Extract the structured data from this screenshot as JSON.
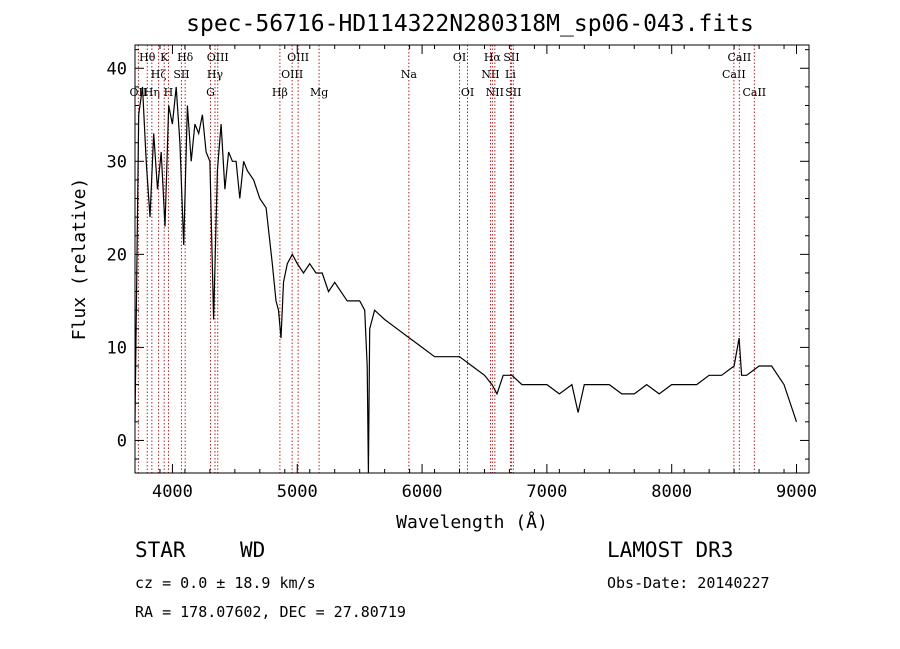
{
  "chart_data": {
    "type": "line",
    "title": "spec-56716-HD114322N280318M_sp06-043.fits",
    "xlabel": "Wavelength (Å)",
    "ylabel": "Flux (relative)",
    "xlim": [
      3700,
      9100
    ],
    "ylim": [
      -3.5,
      42.5
    ],
    "xticks": [
      4000,
      5000,
      6000,
      7000,
      8000,
      9000
    ],
    "yticks": [
      0,
      10,
      20,
      30,
      40
    ],
    "series": [
      {
        "name": "flux",
        "x": [
          3700,
          3730,
          3760,
          3790,
          3820,
          3850,
          3880,
          3910,
          3940,
          3970,
          4000,
          4030,
          4060,
          4090,
          4120,
          4150,
          4180,
          4210,
          4240,
          4270,
          4300,
          4330,
          4360,
          4390,
          4420,
          4450,
          4480,
          4510,
          4540,
          4570,
          4600,
          4650,
          4700,
          4750,
          4800,
          4830,
          4850,
          4870,
          4890,
          4920,
          4960,
          5000,
          5050,
          5100,
          5150,
          5200,
          5250,
          5300,
          5350,
          5400,
          5450,
          5500,
          5540,
          5560,
          5570,
          5580,
          5620,
          5700,
          5800,
          5900,
          6000,
          6100,
          6200,
          6300,
          6400,
          6500,
          6560,
          6600,
          6650,
          6720,
          6800,
          6900,
          7000,
          7100,
          7200,
          7250,
          7300,
          7400,
          7500,
          7600,
          7700,
          7800,
          7900,
          8000,
          8100,
          8200,
          8300,
          8400,
          8500,
          8540,
          8560,
          8600,
          8700,
          8800,
          8900,
          9000
        ],
        "y": [
          2,
          35,
          38,
          30,
          24,
          33,
          27,
          31,
          23,
          36,
          34,
          38,
          32,
          21,
          36,
          30,
          34,
          33,
          35,
          31,
          30,
          13,
          29,
          34,
          27,
          31,
          30,
          30,
          26,
          30,
          29,
          28,
          26,
          25,
          19,
          15,
          14,
          11,
          17,
          19,
          20,
          19,
          18,
          19,
          18,
          18,
          16,
          17,
          16,
          15,
          15,
          15,
          14,
          8,
          -3.5,
          12,
          14,
          13,
          12,
          11,
          10,
          9,
          9,
          9,
          8,
          7,
          6,
          5,
          7,
          7,
          6,
          6,
          6,
          5,
          6,
          3,
          6,
          6,
          6,
          5,
          5,
          6,
          5,
          6,
          6,
          6,
          7,
          7,
          8,
          11,
          7,
          7,
          8,
          8,
          6,
          2
        ]
      }
    ],
    "line_markers": [
      {
        "label": "OII",
        "wavelength": 3727,
        "row": 3
      },
      {
        "label": "Hθ",
        "wavelength": 3798,
        "row": 1
      },
      {
        "label": "Hη",
        "wavelength": 3835,
        "row": 3
      },
      {
        "label": "Hζ",
        "wavelength": 3889,
        "row": 2
      },
      {
        "label": "SII",
        "wavelength": 4072,
        "row": 2
      },
      {
        "label": "K",
        "wavelength": 3934,
        "row": 1
      },
      {
        "label": "H",
        "wavelength": 3968,
        "row": 3
      },
      {
        "label": "Hδ",
        "wavelength": 4102,
        "row": 1
      },
      {
        "label": "G",
        "wavelength": 4305,
        "row": 3
      },
      {
        "label": "Hγ",
        "wavelength": 4341,
        "row": 2
      },
      {
        "label": "OIII",
        "wavelength": 4363,
        "row": 1
      },
      {
        "label": "Hβ",
        "wavelength": 4861,
        "row": 3
      },
      {
        "label": "OIII",
        "wavelength": 4959,
        "row": 2
      },
      {
        "label": "OIII",
        "wavelength": 5007,
        "row": 1
      },
      {
        "label": "Mg",
        "wavelength": 5175,
        "row": 3
      },
      {
        "label": "Na",
        "wavelength": 5894,
        "row": 2
      },
      {
        "label": "OI",
        "wavelength": 6300,
        "row": 1
      },
      {
        "label": "OI",
        "wavelength": 6364,
        "row": 3
      },
      {
        "label": "NII",
        "wavelength": 6548,
        "row": 2
      },
      {
        "label": "Hα",
        "wavelength": 6563,
        "row": 1
      },
      {
        "label": "NII",
        "wavelength": 6583,
        "row": 3
      },
      {
        "label": "Li",
        "wavelength": 6708,
        "row": 2
      },
      {
        "label": "SII",
        "wavelength": 6716,
        "row": 1
      },
      {
        "label": "SII",
        "wavelength": 6731,
        "row": 3
      },
      {
        "label": "CaII",
        "wavelength": 8498,
        "row": 2
      },
      {
        "label": "CaII",
        "wavelength": 8542,
        "row": 1
      },
      {
        "label": "CaII",
        "wavelength": 8662,
        "row": 3
      }
    ],
    "colors": {
      "spectrum": "#000000",
      "markers": "#b22222",
      "axes": "#000000"
    }
  },
  "footer": {
    "object_class": "STAR",
    "subclass": "WD",
    "survey": "LAMOST DR3",
    "redshift": "cz = 0.0 ± 18.9 km/s",
    "obs_date": "Obs-Date: 20140227",
    "coords": "RA = 178.07602, DEC =  27.80719"
  }
}
